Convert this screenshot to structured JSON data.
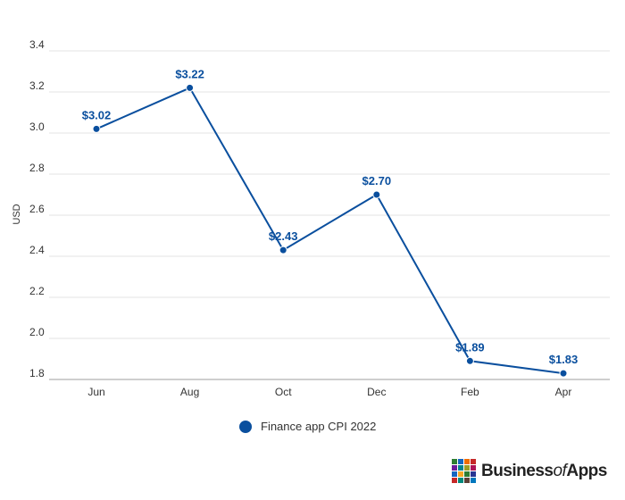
{
  "chart_data": {
    "type": "line",
    "categories": [
      "Jun",
      "Aug",
      "Oct",
      "Dec",
      "Feb",
      "Apr"
    ],
    "series": [
      {
        "name": "Finance app CPI 2022",
        "values": [
          3.02,
          3.22,
          2.43,
          2.7,
          1.89,
          1.83
        ],
        "labels": [
          "$3.02",
          "$3.22",
          "$2.43",
          "$2.70",
          "$1.89",
          "$1.83"
        ],
        "color": "#0a4f9e"
      }
    ],
    "ylabel": "USD",
    "ylim": [
      1.8,
      3.4
    ],
    "yticks": [
      "1.8",
      "2.0",
      "2.2",
      "2.4",
      "2.6",
      "2.8",
      "3.0",
      "3.2",
      "3.4"
    ],
    "ytick_values": [
      1.8,
      2.0,
      2.2,
      2.4,
      2.6,
      2.8,
      3.0,
      3.2,
      3.4
    ],
    "grid": true,
    "legend_position": "bottom-center"
  },
  "legend": {
    "label": "Finance app CPI 2022"
  },
  "brand": {
    "prefix": "Business",
    "of": "of",
    "suffix": "Apps",
    "logo_colors": [
      "#2e7d32",
      "#1565c0",
      "#ef6c00",
      "#c62828",
      "#6a1b9a",
      "#00838f",
      "#9e9d24",
      "#ad1457",
      "#1565c0",
      "#f9a825",
      "#2e7d32",
      "#283593",
      "#c62828",
      "#00897b",
      "#5d4037",
      "#0277bd"
    ]
  }
}
